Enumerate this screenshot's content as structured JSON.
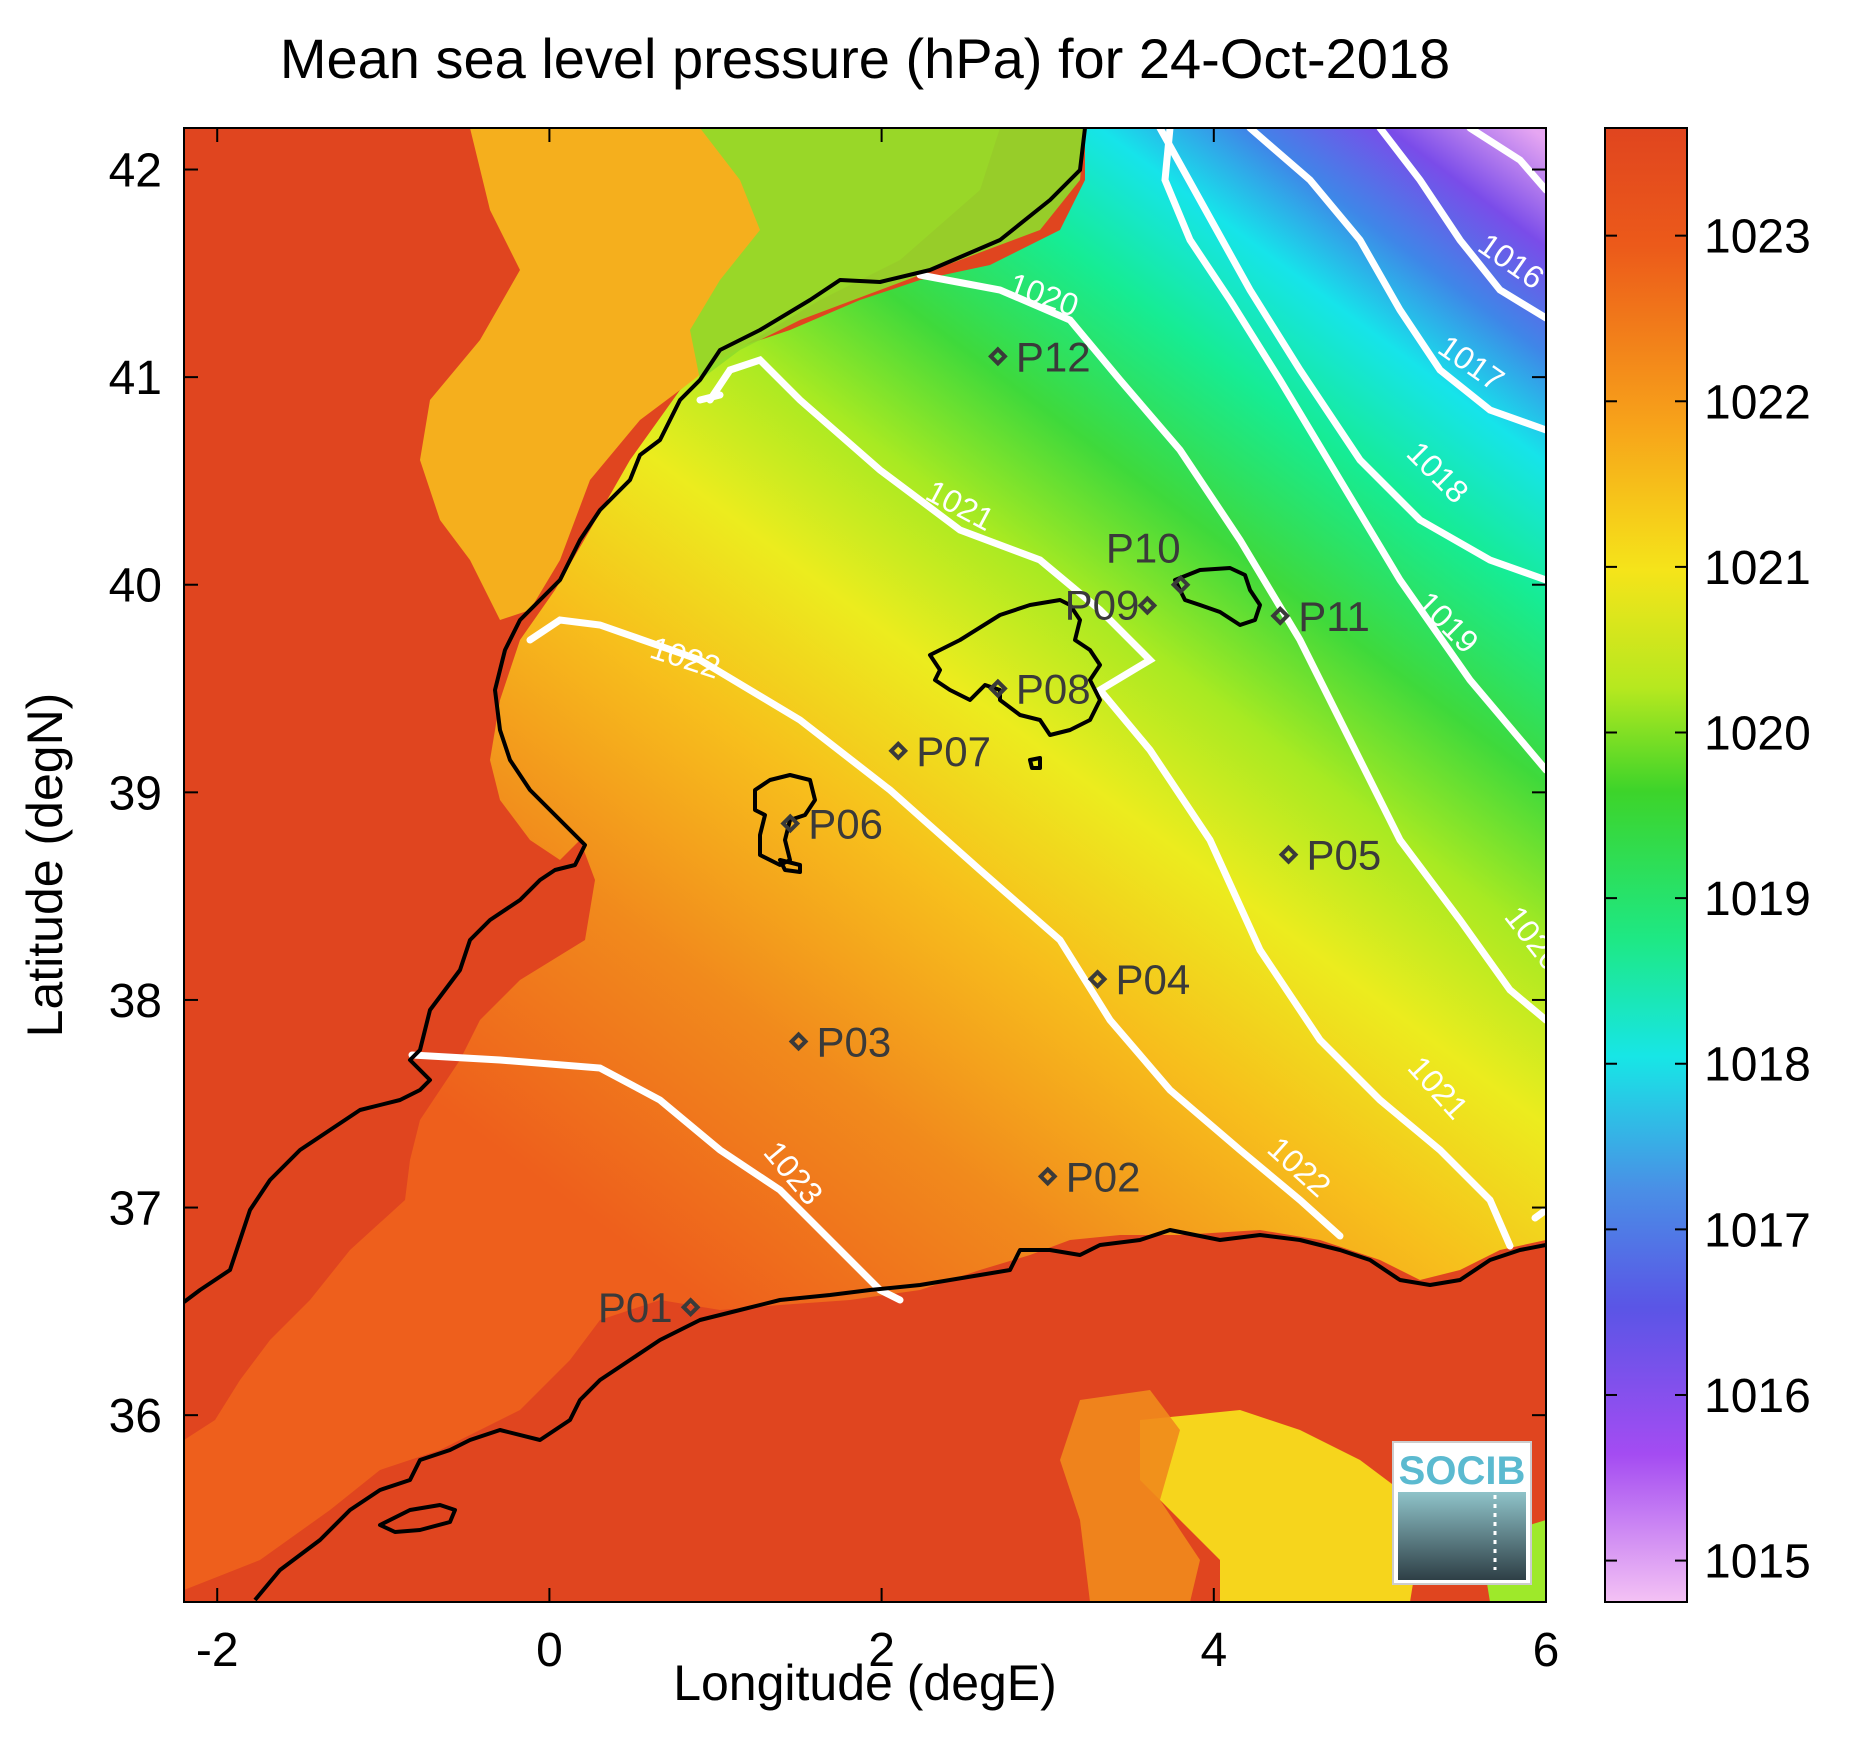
{
  "title": "Mean sea level pressure (hPa) for 24-Oct-2018",
  "xlabel": "Longitude (degE)",
  "ylabel": "Latitude (degN)",
  "xticks": [
    "-2",
    "0",
    "2",
    "4",
    "6"
  ],
  "yticks": [
    "42",
    "41",
    "40",
    "39",
    "38",
    "37",
    "36"
  ],
  "colorbar": {
    "ticks": [
      "1023",
      "1022",
      "1021",
      "1020",
      "1019",
      "1018",
      "1017",
      "1016",
      "1015"
    ],
    "min": 1014.75,
    "max": 1023.65
  },
  "extent": {
    "lon": [
      -2.2,
      6.0
    ],
    "lat": [
      35.1,
      42.2
    ]
  },
  "contours": [
    {
      "label": "1016",
      "color": "#ffffff"
    },
    {
      "label": "1017",
      "color": "#ffffff"
    },
    {
      "label": "1018",
      "color": "#ffffff"
    },
    {
      "label": "1019",
      "color": "#ffffff"
    },
    {
      "label": "1020",
      "color": "#ffffff"
    },
    {
      "label": "1020",
      "color": "#ffffff"
    },
    {
      "label": "1021",
      "color": "#ffffff"
    },
    {
      "label": "1021",
      "color": "#ffffff"
    },
    {
      "label": "1022",
      "color": "#ffffff"
    },
    {
      "label": "1022",
      "color": "#ffffff"
    },
    {
      "label": "1023",
      "color": "#ffffff"
    }
  ],
  "points": [
    {
      "label": "P01",
      "lon": 0.85,
      "lat": 36.52
    },
    {
      "label": "P02",
      "lon": 3.0,
      "lat": 37.15
    },
    {
      "label": "P03",
      "lon": 1.5,
      "lat": 37.8
    },
    {
      "label": "P04",
      "lon": 3.3,
      "lat": 38.1
    },
    {
      "label": "P05",
      "lon": 4.45,
      "lat": 38.7
    },
    {
      "label": "P06",
      "lon": 1.45,
      "lat": 38.85
    },
    {
      "label": "P07",
      "lon": 2.1,
      "lat": 39.2
    },
    {
      "label": "P08",
      "lon": 2.7,
      "lat": 39.5
    },
    {
      "label": "P09",
      "lon": 3.6,
      "lat": 39.9
    },
    {
      "label": "P10",
      "lon": 3.8,
      "lat": 40.0
    },
    {
      "label": "P11",
      "lon": 4.4,
      "lat": 39.85
    },
    {
      "label": "P12",
      "lon": 2.7,
      "lat": 41.1
    }
  ],
  "logo": {
    "text": "SOCIB"
  },
  "colors": {
    "high": "#e0451f",
    "mid": "#f5e41a",
    "low": "#2fd64a",
    "cyan": "#13e8e0",
    "blue": "#4a6fe6",
    "purple": "#9b48ee",
    "pink": "#f4b9f4"
  }
}
